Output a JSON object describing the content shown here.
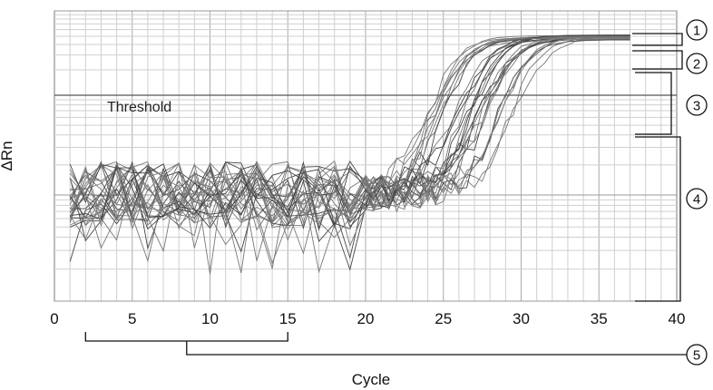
{
  "chart_data": {
    "type": "line",
    "xlabel": "Cycle",
    "ylabel": "ΔRn",
    "xlim": [
      0,
      40
    ],
    "x_ticks": [
      0,
      5,
      10,
      15,
      20,
      25,
      30,
      35,
      40
    ],
    "y_scale": "log",
    "grid": true,
    "threshold_label": "Threshold",
    "annotations": [
      {
        "id": "1",
        "text": "1"
      },
      {
        "id": "2",
        "text": "2"
      },
      {
        "id": "3",
        "text": "3"
      },
      {
        "id": "4",
        "text": "4"
      },
      {
        "id": "5",
        "text": "5"
      }
    ],
    "baseline_range": [
      2,
      15
    ],
    "marker5_x": 8.5
  }
}
